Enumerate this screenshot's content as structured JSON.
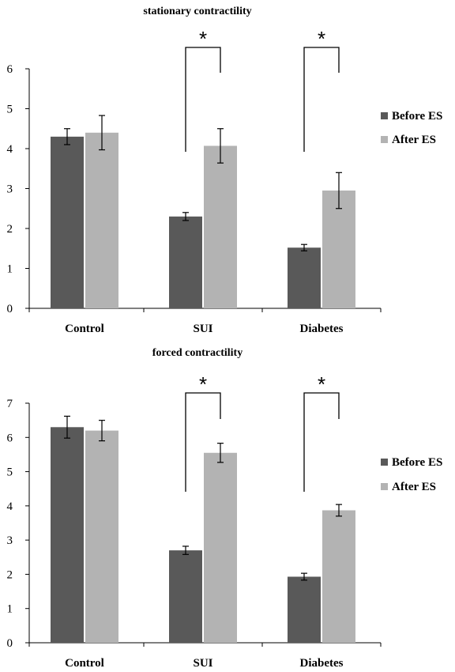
{
  "chart_data": [
    {
      "type": "bar",
      "title": "stationary contractility",
      "categories": [
        "Control",
        "SUI",
        "Diabetes"
      ],
      "ylim": [
        0,
        6
      ],
      "yticks": [
        0,
        1,
        2,
        3,
        4,
        5,
        6
      ],
      "series": [
        {
          "name": "Before ES",
          "color": "#595959",
          "values": [
            4.3,
            2.3,
            1.52
          ],
          "errors": [
            0.2,
            0.1,
            0.08
          ]
        },
        {
          "name": "After ES",
          "color": "#b3b3b3",
          "values": [
            4.4,
            4.07,
            2.95
          ],
          "errors": [
            0.43,
            0.43,
            0.45
          ]
        }
      ],
      "significance": [
        {
          "category": "SUI",
          "label": "*"
        },
        {
          "category": "Diabetes",
          "label": "*"
        }
      ],
      "legend_position": "right",
      "grid": false
    },
    {
      "type": "bar",
      "title": "forced contractility",
      "categories": [
        "Control",
        "SUI",
        "Diabetes"
      ],
      "ylim": [
        0,
        7
      ],
      "yticks": [
        0,
        1,
        2,
        3,
        4,
        5,
        6,
        7
      ],
      "series": [
        {
          "name": "Before ES",
          "color": "#595959",
          "values": [
            6.3,
            2.7,
            1.93
          ],
          "errors": [
            0.32,
            0.12,
            0.1
          ]
        },
        {
          "name": "After ES",
          "color": "#b3b3b3",
          "values": [
            6.2,
            5.55,
            3.87
          ],
          "errors": [
            0.3,
            0.28,
            0.17
          ]
        }
      ],
      "significance": [
        {
          "category": "SUI",
          "label": "*"
        },
        {
          "category": "Diabetes",
          "label": "*"
        }
      ],
      "legend_position": "right",
      "grid": false
    }
  ]
}
